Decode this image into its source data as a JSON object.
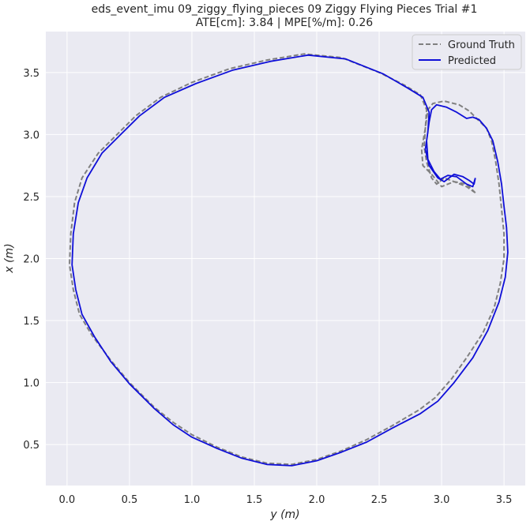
{
  "chart_data": {
    "type": "line",
    "title": "eds_event_imu 09_ziggy_flying_pieces 09 Ziggy Flying Pieces Trial #1",
    "subtitle": "ATE[cm]: 3.84 | MPE[%/m]: 0.26",
    "xlabel": "y (m)",
    "ylabel": "x (m)",
    "xlim": [
      -0.17,
      3.67
    ],
    "ylim": [
      0.17,
      3.83
    ],
    "xticks": [
      "0.0",
      "0.5",
      "1.0",
      "1.5",
      "2.0",
      "2.5",
      "3.0",
      "3.5"
    ],
    "yticks": [
      "0.5",
      "1.0",
      "1.5",
      "2.0",
      "2.5",
      "3.0",
      "3.5"
    ],
    "grid": true,
    "legend": "top-right",
    "background": "#eaeaf2",
    "series": [
      {
        "name": "Ground Truth",
        "color": "#808080",
        "style": "dashed",
        "points": [
          [
            3.27,
            2.53
          ],
          [
            3.2,
            2.58
          ],
          [
            3.1,
            2.62
          ],
          [
            3.02,
            2.65
          ],
          [
            2.96,
            2.6
          ],
          [
            2.92,
            2.65
          ],
          [
            2.88,
            2.78
          ],
          [
            2.86,
            2.9
          ],
          [
            2.87,
            3.05
          ],
          [
            2.89,
            3.2
          ],
          [
            2.93,
            3.25
          ],
          [
            3.02,
            3.27
          ],
          [
            3.14,
            3.24
          ],
          [
            3.22,
            3.19
          ],
          [
            3.29,
            3.12
          ],
          [
            3.36,
            3.05
          ],
          [
            3.4,
            2.95
          ],
          [
            3.43,
            2.8
          ],
          [
            3.46,
            2.6
          ],
          [
            3.48,
            2.4
          ],
          [
            3.5,
            2.2
          ],
          [
            3.5,
            2.0
          ],
          [
            3.47,
            1.8
          ],
          [
            3.42,
            1.6
          ],
          [
            3.33,
            1.4
          ],
          [
            3.2,
            1.2
          ],
          [
            3.08,
            1.03
          ],
          [
            2.95,
            0.88
          ],
          [
            2.82,
            0.78
          ],
          [
            2.6,
            0.65
          ],
          [
            2.4,
            0.54
          ],
          [
            2.2,
            0.45
          ],
          [
            2.0,
            0.38
          ],
          [
            1.8,
            0.34
          ],
          [
            1.6,
            0.35
          ],
          [
            1.4,
            0.4
          ],
          [
            1.2,
            0.48
          ],
          [
            1.0,
            0.58
          ],
          [
            0.85,
            0.68
          ],
          [
            0.7,
            0.8
          ],
          [
            0.5,
            1.0
          ],
          [
            0.35,
            1.18
          ],
          [
            0.2,
            1.38
          ],
          [
            0.1,
            1.55
          ],
          [
            0.05,
            1.75
          ],
          [
            0.02,
            1.95
          ],
          [
            0.03,
            2.2
          ],
          [
            0.06,
            2.45
          ],
          [
            0.12,
            2.65
          ],
          [
            0.25,
            2.85
          ],
          [
            0.4,
            3.0
          ],
          [
            0.55,
            3.15
          ],
          [
            0.75,
            3.3
          ],
          [
            1.0,
            3.42
          ],
          [
            1.3,
            3.53
          ],
          [
            1.6,
            3.6
          ],
          [
            1.9,
            3.65
          ],
          [
            2.2,
            3.62
          ],
          [
            2.5,
            3.5
          ],
          [
            2.7,
            3.4
          ],
          [
            2.83,
            3.32
          ],
          [
            2.88,
            3.2
          ],
          [
            2.87,
            3.05
          ],
          [
            2.84,
            2.88
          ],
          [
            2.85,
            2.75
          ],
          [
            2.92,
            2.68
          ],
          [
            3.0,
            2.58
          ],
          [
            3.1,
            2.62
          ],
          [
            3.2,
            2.6
          ],
          [
            3.27,
            2.53
          ]
        ]
      },
      {
        "name": "Predicted",
        "color": "#0f0fd8",
        "style": "solid",
        "points": [
          [
            3.27,
            2.65
          ],
          [
            3.25,
            2.58
          ],
          [
            3.2,
            2.6
          ],
          [
            3.12,
            2.66
          ],
          [
            3.05,
            2.67
          ],
          [
            2.99,
            2.64
          ],
          [
            2.94,
            2.7
          ],
          [
            2.89,
            2.8
          ],
          [
            2.88,
            2.95
          ],
          [
            2.9,
            3.1
          ],
          [
            2.92,
            3.2
          ],
          [
            2.96,
            3.24
          ],
          [
            3.04,
            3.22
          ],
          [
            3.12,
            3.18
          ],
          [
            3.2,
            3.13
          ],
          [
            3.25,
            3.14
          ],
          [
            3.3,
            3.12
          ],
          [
            3.36,
            3.05
          ],
          [
            3.41,
            2.95
          ],
          [
            3.45,
            2.78
          ],
          [
            3.48,
            2.6
          ],
          [
            3.5,
            2.42
          ],
          [
            3.52,
            2.25
          ],
          [
            3.53,
            2.05
          ],
          [
            3.51,
            1.85
          ],
          [
            3.46,
            1.65
          ],
          [
            3.37,
            1.42
          ],
          [
            3.25,
            1.2
          ],
          [
            3.1,
            1.0
          ],
          [
            2.97,
            0.85
          ],
          [
            2.83,
            0.75
          ],
          [
            2.6,
            0.63
          ],
          [
            2.4,
            0.52
          ],
          [
            2.2,
            0.44
          ],
          [
            2.0,
            0.37
          ],
          [
            1.8,
            0.33
          ],
          [
            1.6,
            0.34
          ],
          [
            1.4,
            0.39
          ],
          [
            1.2,
            0.47
          ],
          [
            1.0,
            0.56
          ],
          [
            0.85,
            0.66
          ],
          [
            0.7,
            0.79
          ],
          [
            0.5,
            0.99
          ],
          [
            0.35,
            1.17
          ],
          [
            0.22,
            1.37
          ],
          [
            0.12,
            1.55
          ],
          [
            0.07,
            1.75
          ],
          [
            0.04,
            1.95
          ],
          [
            0.05,
            2.2
          ],
          [
            0.09,
            2.45
          ],
          [
            0.16,
            2.65
          ],
          [
            0.28,
            2.85
          ],
          [
            0.43,
            3.0
          ],
          [
            0.58,
            3.15
          ],
          [
            0.78,
            3.3
          ],
          [
            1.03,
            3.41
          ],
          [
            1.33,
            3.52
          ],
          [
            1.63,
            3.59
          ],
          [
            1.93,
            3.64
          ],
          [
            2.23,
            3.61
          ],
          [
            2.53,
            3.49
          ],
          [
            2.72,
            3.38
          ],
          [
            2.85,
            3.3
          ],
          [
            2.9,
            3.18
          ],
          [
            2.89,
            3.02
          ],
          [
            2.87,
            2.88
          ],
          [
            2.9,
            2.75
          ],
          [
            2.97,
            2.65
          ],
          [
            3.02,
            2.62
          ],
          [
            3.1,
            2.68
          ],
          [
            3.17,
            2.66
          ],
          [
            3.22,
            2.63
          ],
          [
            3.26,
            2.6
          ],
          [
            3.27,
            2.65
          ]
        ]
      }
    ]
  }
}
